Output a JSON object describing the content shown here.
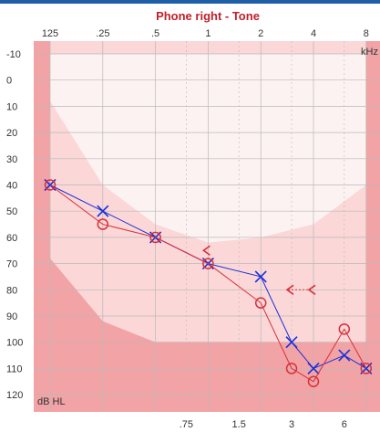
{
  "chart_data": {
    "type": "scatter",
    "title": "Phone right - Tone",
    "x_unit_label": "kHz",
    "y_unit_label": "dB HL",
    "x_ticks_top": [
      "125",
      ".25",
      ".5",
      "1",
      "2",
      "4",
      "8"
    ],
    "x_ticks_top_values": [
      0.125,
      0.25,
      0.5,
      1,
      2,
      4,
      8
    ],
    "x_ticks_bottom": [
      ".75",
      "1.5",
      "3",
      "6"
    ],
    "x_ticks_bottom_values": [
      0.75,
      1.5,
      3,
      6
    ],
    "y_ticks": [
      "-10",
      "0",
      "10",
      "20",
      "30",
      "40",
      "50",
      "60",
      "70",
      "80",
      "90",
      "100",
      "110",
      "120"
    ],
    "ylim": [
      -10,
      125
    ],
    "x_scale": "log2",
    "grid": true,
    "colors": {
      "title": "#c0202a",
      "air_left": "#1a2fd8",
      "air_right": "#d8303a",
      "bc_marker": "#d8303a",
      "zone_dark": "#f2a3a6",
      "zone_mid": "#fbd7d8",
      "zone_light": "#fdf2f2",
      "grid": "#b9b9b9"
    },
    "series": [
      {
        "marker": "x",
        "color": "#1a2fd8",
        "points": [
          [
            0.125,
            40
          ],
          [
            0.25,
            50
          ],
          [
            0.5,
            60
          ],
          [
            1,
            70
          ],
          [
            2,
            75
          ],
          [
            3,
            100
          ],
          [
            4,
            110
          ],
          [
            6,
            105
          ],
          [
            8,
            110
          ]
        ]
      },
      {
        "marker": "o",
        "color": "#d8303a",
        "points": [
          [
            0.125,
            40
          ],
          [
            0.25,
            55
          ],
          [
            0.5,
            60
          ],
          [
            1,
            70
          ],
          [
            2,
            85
          ],
          [
            3,
            110
          ],
          [
            4,
            115
          ],
          [
            6,
            95
          ],
          [
            8,
            110
          ]
        ]
      },
      {
        "marker": "<",
        "color": "#d8303a",
        "points": [
          [
            1,
            65
          ],
          [
            3,
            80
          ],
          [
            4,
            80
          ]
        ]
      }
    ]
  }
}
